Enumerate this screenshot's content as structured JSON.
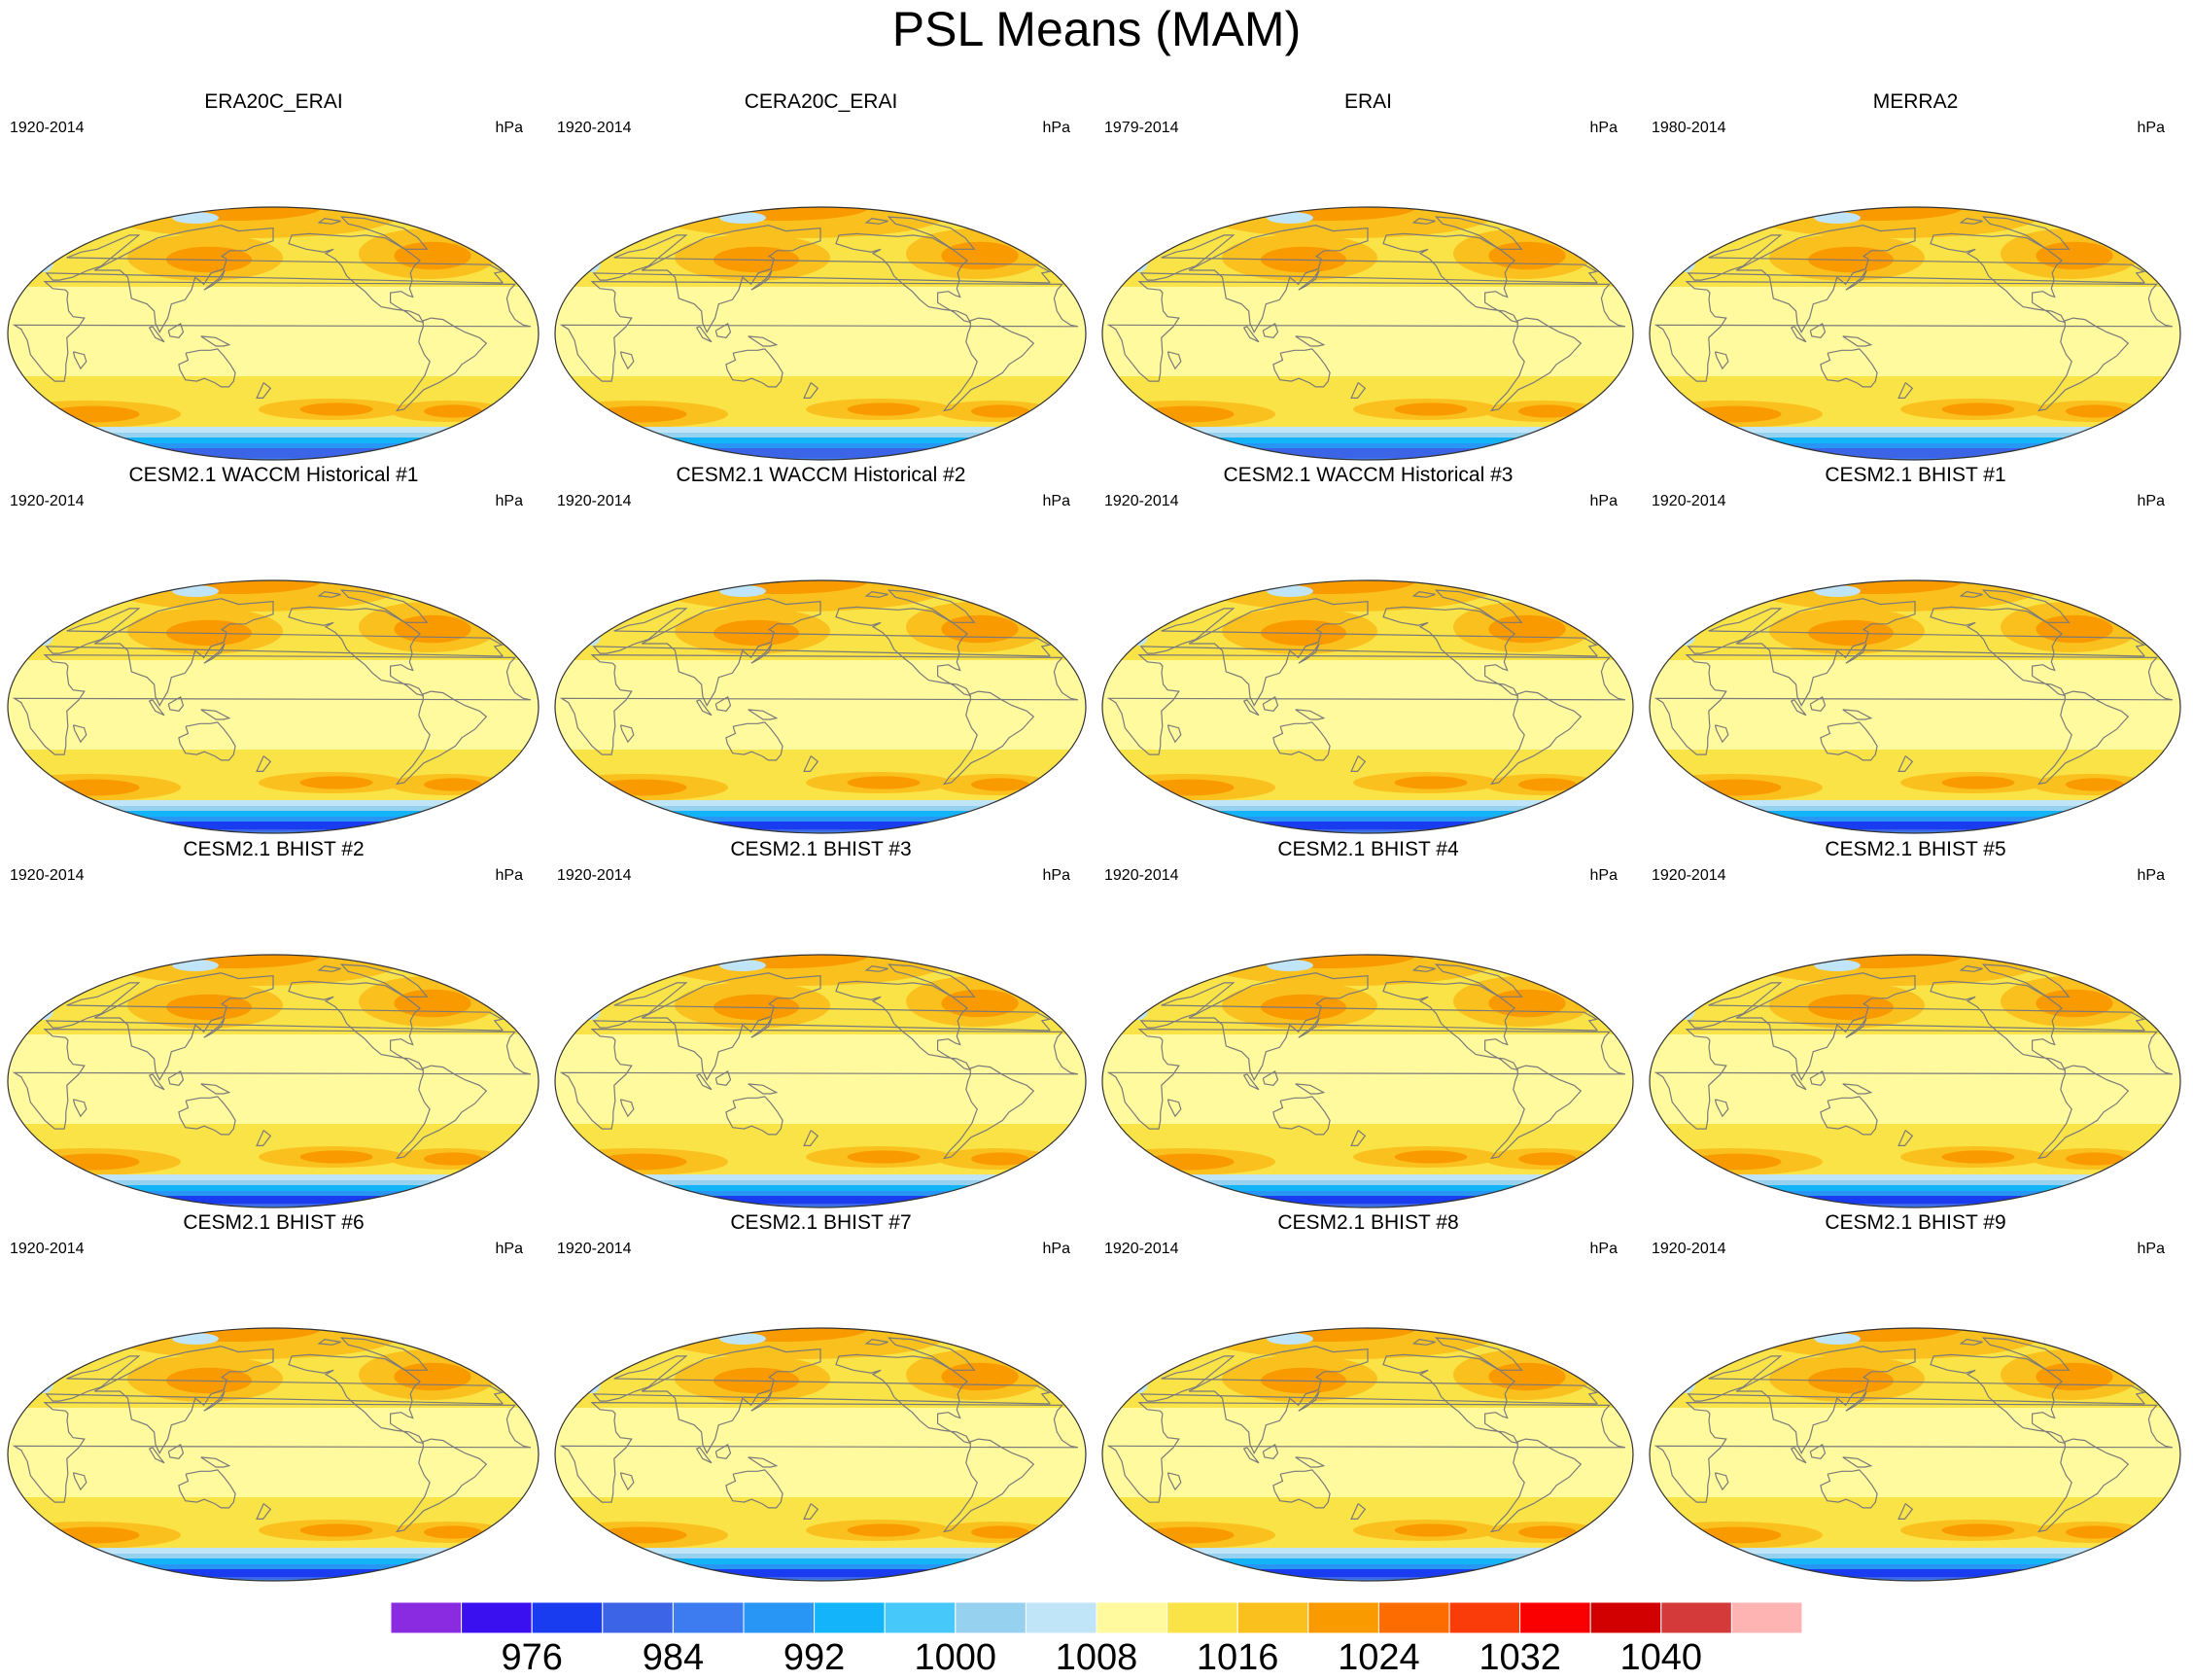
{
  "title": "PSL Means (MAM)",
  "panels": [
    {
      "title": "ERA20C_ERAI",
      "years": "1920-2014",
      "units": "hPa",
      "variant": 0
    },
    {
      "title": "CERA20C_ERAI",
      "years": "1920-2014",
      "units": "hPa",
      "variant": 0
    },
    {
      "title": "ERAI",
      "years": "1979-2014",
      "units": "hPa",
      "variant": 0
    },
    {
      "title": "MERRA2",
      "years": "1980-2014",
      "units": "hPa",
      "variant": 0
    },
    {
      "title": "CESM2.1 WACCM Historical #1",
      "years": "1920-2014",
      "units": "hPa",
      "variant": 1
    },
    {
      "title": "CESM2.1 WACCM Historical #2",
      "years": "1920-2014",
      "units": "hPa",
      "variant": 1
    },
    {
      "title": "CESM2.1 WACCM Historical #3",
      "years": "1920-2014",
      "units": "hPa",
      "variant": 1
    },
    {
      "title": "CESM2.1 BHIST #1",
      "years": "1920-2014",
      "units": "hPa",
      "variant": 1
    },
    {
      "title": "CESM2.1 BHIST #2",
      "years": "1920-2014",
      "units": "hPa",
      "variant": 1
    },
    {
      "title": "CESM2.1 BHIST #3",
      "years": "1920-2014",
      "units": "hPa",
      "variant": 1
    },
    {
      "title": "CESM2.1 BHIST #4",
      "years": "1920-2014",
      "units": "hPa",
      "variant": 1
    },
    {
      "title": "CESM2.1 BHIST #5",
      "years": "1920-2014",
      "units": "hPa",
      "variant": 1
    },
    {
      "title": "CESM2.1 BHIST #6",
      "years": "1920-2014",
      "units": "hPa",
      "variant": 1
    },
    {
      "title": "CESM2.1 BHIST #7",
      "years": "1920-2014",
      "units": "hPa",
      "variant": 1
    },
    {
      "title": "CESM2.1 BHIST #8",
      "years": "1920-2014",
      "units": "hPa",
      "variant": 1
    },
    {
      "title": "CESM2.1 BHIST #9",
      "years": "1920-2014",
      "units": "hPa",
      "variant": 1
    }
  ],
  "colorbar": {
    "colors": [
      "#8a2be2",
      "#3a10f0",
      "#1a3cf0",
      "#3c64e6",
      "#3c7cf0",
      "#2896f5",
      "#14b4fa",
      "#46c8fa",
      "#96d2f0",
      "#c0e4f8",
      "#fffa9e",
      "#fae346",
      "#fac01e",
      "#f99a00",
      "#fc6c00",
      "#fa3c0a",
      "#fa0000",
      "#d20000",
      "#d43a3a",
      "#ffb4b4"
    ],
    "labels": [
      "976",
      "984",
      "992",
      "1000",
      "1008",
      "1016",
      "1024",
      "1032",
      "1040"
    ]
  }
}
